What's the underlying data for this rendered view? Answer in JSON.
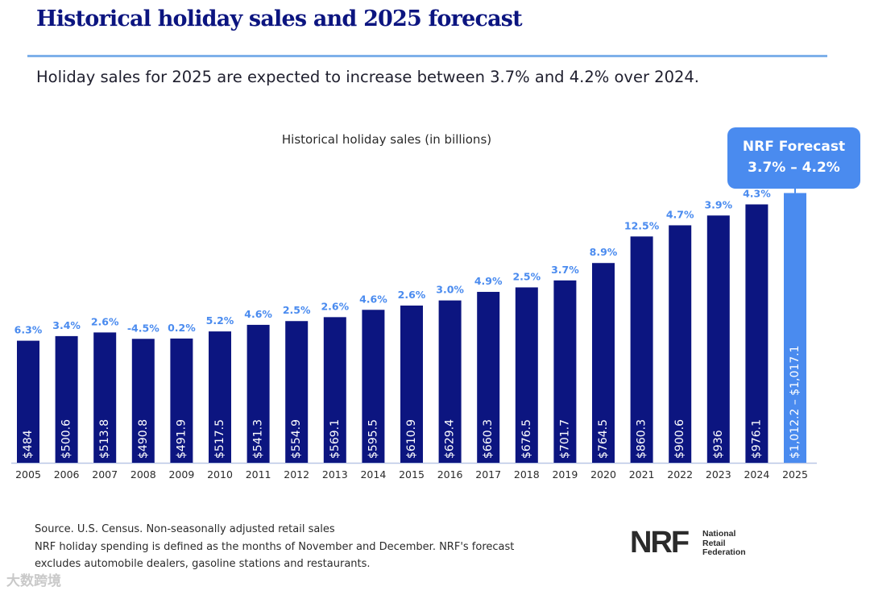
{
  "header": {
    "title": "Historical holiday sales and 2025 forecast",
    "subtitle": "Holiday sales for 2025 are expected to increase between 3.7% and 4.2% over 2024."
  },
  "colors": {
    "title": "#0c1580",
    "historical_bar": "#0c1580",
    "forecast_bar": "#4a8bef",
    "growth_label": "#4a8bef",
    "rule": "#7eb0ea"
  },
  "chart_data": {
    "type": "bar",
    "title": "Historical holiday sales (in billions)",
    "categories": [
      "2005",
      "2006",
      "2007",
      "2008",
      "2009",
      "2010",
      "2011",
      "2012",
      "2013",
      "2014",
      "2015",
      "2016",
      "2017",
      "2018",
      "2019",
      "2020",
      "2021",
      "2022",
      "2023",
      "2024",
      "2025"
    ],
    "values": [
      484,
      500.6,
      513.8,
      490.8,
      491.9,
      517.5,
      541.3,
      554.9,
      569.1,
      595.5,
      610.9,
      629.4,
      660.3,
      676.5,
      701.7,
      764.5,
      860.3,
      900.6,
      936,
      976.1,
      1017.1
    ],
    "value_labels": [
      "$484",
      "$500.6",
      "$513.8",
      "$490.8",
      "$491.9",
      "$517.5",
      "$541.3",
      "$554.9",
      "$569.1",
      "$595.5",
      "$610.9",
      "$629.4",
      "$660.3",
      "$676.5",
      "$701.7",
      "$764.5",
      "$860.3",
      "$900.6",
      "$936",
      "$976.1",
      "$1,012.2 – $1,017.1"
    ],
    "growth_labels": [
      "6.3%",
      "3.4%",
      "2.6%",
      "-4.5%",
      "0.2%",
      "5.2%",
      "4.6%",
      "2.5%",
      "2.6%",
      "4.6%",
      "2.6%",
      "3.0%",
      "4.9%",
      "2.5%",
      "3.7%",
      "8.9%",
      "12.5%",
      "4.7%",
      "3.9%",
      "4.3%",
      ""
    ],
    "forecast_range": [
      1012.2,
      1017.1
    ],
    "forecast_index": 20,
    "ylim": [
      0,
      1100
    ],
    "grid": false,
    "legend": "none"
  },
  "callout": {
    "line1": "NRF Forecast",
    "line2": "3.7% – 4.2%"
  },
  "footnote": {
    "line1": "Source. U.S. Census. Non-seasonally adjusted retail sales",
    "line2": "NRF holiday spending is defined as the months of November and December. NRF's forecast",
    "line3": "excludes automobile dealers, gasoline stations and restaurants."
  },
  "logo": {
    "mark": "NRF",
    "line1": "National",
    "line2": "Retail",
    "line3": "Federation"
  },
  "watermark": "大数跨境"
}
